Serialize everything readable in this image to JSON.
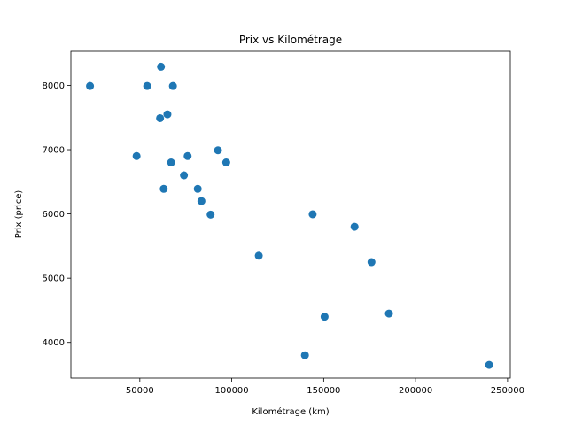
{
  "chart_data": {
    "type": "scatter",
    "title": "Prix vs Kilométrage",
    "xlabel": "Kilométrage (km)",
    "ylabel": "Prix (price)",
    "xlim": [
      12500,
      251500
    ],
    "ylim": [
      3445,
      8530
    ],
    "xticks": [
      50000,
      100000,
      150000,
      200000,
      250000
    ],
    "yticks": [
      4000,
      5000,
      6000,
      7000,
      8000
    ],
    "grid": false,
    "color": "#1f77b4",
    "points": [
      {
        "x": 22899,
        "y": 7990
      },
      {
        "x": 48235,
        "y": 6900
      },
      {
        "x": 54000,
        "y": 7990
      },
      {
        "x": 61000,
        "y": 7490
      },
      {
        "x": 61500,
        "y": 8290
      },
      {
        "x": 63000,
        "y": 6390
      },
      {
        "x": 65000,
        "y": 7550
      },
      {
        "x": 67000,
        "y": 6800
      },
      {
        "x": 68000,
        "y": 7990
      },
      {
        "x": 74000,
        "y": 6600
      },
      {
        "x": 76000,
        "y": 6900
      },
      {
        "x": 81500,
        "y": 6390
      },
      {
        "x": 83500,
        "y": 6200
      },
      {
        "x": 88500,
        "y": 5990
      },
      {
        "x": 92500,
        "y": 6990
      },
      {
        "x": 97000,
        "y": 6800
      },
      {
        "x": 114700,
        "y": 5350
      },
      {
        "x": 139800,
        "y": 3800
      },
      {
        "x": 144000,
        "y": 5995
      },
      {
        "x": 150500,
        "y": 4400
      },
      {
        "x": 166800,
        "y": 5800
      },
      {
        "x": 176000,
        "y": 5250
      },
      {
        "x": 185500,
        "y": 4450
      },
      {
        "x": 240000,
        "y": 3650
      }
    ]
  }
}
